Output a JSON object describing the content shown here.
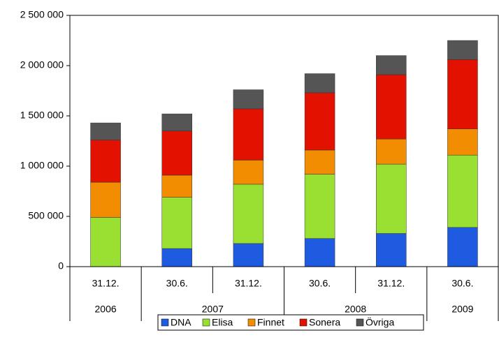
{
  "chart_data": {
    "type": "stacked_bar",
    "categories": [
      "31.12.",
      "30.6.",
      "31.12.",
      "30.6.",
      "31.12.",
      "30.6."
    ],
    "groups": [
      {
        "label": "2006",
        "count": 1
      },
      {
        "label": "2007",
        "count": 2
      },
      {
        "label": "2008",
        "count": 2
      },
      {
        "label": "2009",
        "count": 1
      }
    ],
    "series": [
      {
        "name": "DNA",
        "color": "#1f5be0",
        "values": [
          0,
          180000,
          230000,
          280000,
          330000,
          390000
        ]
      },
      {
        "name": "Elisa",
        "color": "#99e033",
        "values": [
          490000,
          510000,
          590000,
          640000,
          690000,
          720000
        ]
      },
      {
        "name": "Finnet",
        "color": "#f28c00",
        "values": [
          350000,
          220000,
          240000,
          240000,
          250000,
          260000
        ]
      },
      {
        "name": "Sonera",
        "color": "#e31200",
        "values": [
          420000,
          440000,
          510000,
          570000,
          640000,
          690000
        ]
      },
      {
        "name": "Övriga",
        "color": "#555555",
        "values": [
          170000,
          170000,
          190000,
          190000,
          190000,
          190000
        ]
      }
    ],
    "ylim": [
      0,
      2500000
    ],
    "yticks": [
      0,
      {
        "value": 500000,
        "label": "500 000"
      },
      {
        "value": 1000000,
        "label": "1 000 000"
      },
      {
        "value": 1500000,
        "label": "1 500 000"
      },
      {
        "value": 2000000,
        "label": "2 000 000"
      },
      {
        "value": 2500000,
        "label": "2 500 000"
      }
    ],
    "legend": "bottom"
  }
}
